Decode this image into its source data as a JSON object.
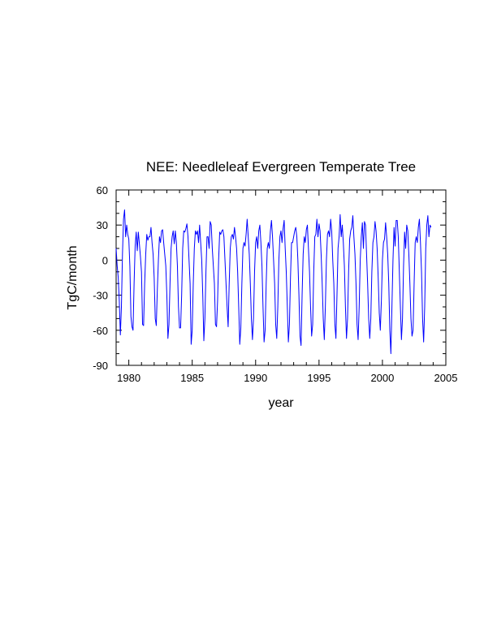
{
  "chart_data": {
    "type": "line",
    "title": "NEE: Needleleaf Evergreen Temperate Tree",
    "xlabel": "year",
    "ylabel": "TgC/month",
    "xlim": [
      1979,
      2005
    ],
    "ylim": [
      -90,
      60
    ],
    "x_ticks": [
      1980,
      1985,
      1990,
      1995,
      2000,
      2005
    ],
    "y_ticks": [
      60,
      30,
      0,
      -30,
      -60,
      -90
    ],
    "grid": false,
    "series_color": "#0000ff",
    "x_start": 1979,
    "step": 0.08333,
    "series": [
      {
        "values": [
          10,
          -5,
          -15,
          -35,
          -64,
          -40,
          5,
          35,
          43,
          20,
          30,
          22,
          18,
          -5,
          -48,
          -57,
          -60,
          -20,
          12,
          24,
          8,
          24,
          14,
          3,
          -10,
          -55,
          -56,
          -20,
          5,
          22,
          17,
          20,
          20,
          28,
          15,
          5,
          -15,
          -50,
          -56,
          -25,
          0,
          20,
          15,
          25,
          26,
          15,
          5,
          -5,
          -30,
          -67,
          -55,
          -20,
          10,
          20,
          25,
          14,
          25,
          15,
          -5,
          -40,
          -58,
          -58,
          -30,
          10,
          25,
          24,
          27,
          31,
          20,
          0,
          -20,
          -72,
          -60,
          -20,
          10,
          25,
          22,
          25,
          15,
          30,
          15,
          0,
          -30,
          -69,
          -50,
          -10,
          20,
          20,
          10,
          33,
          30,
          10,
          -5,
          -20,
          -55,
          -57,
          -35,
          0,
          24,
          22,
          25,
          26,
          20,
          0,
          -20,
          -40,
          -57,
          -20,
          10,
          20,
          22,
          18,
          28,
          20,
          10,
          -10,
          -40,
          -72,
          -58,
          -20,
          10,
          15,
          12,
          22,
          35,
          20,
          5,
          -20,
          -50,
          -68,
          -50,
          -10,
          15,
          20,
          10,
          25,
          30,
          15,
          -5,
          -40,
          -70,
          -60,
          -20,
          10,
          15,
          10,
          25,
          34,
          20,
          0,
          -20,
          -55,
          -67,
          -40,
          0,
          20,
          25,
          15,
          27,
          34,
          10,
          -10,
          -40,
          -70,
          -55,
          -15,
          15,
          15,
          20,
          25,
          28,
          20,
          0,
          -30,
          -65,
          -73,
          -30,
          5,
          20,
          15,
          26,
          30,
          10,
          -10,
          -40,
          -65,
          -55,
          -10,
          20,
          22,
          35,
          20,
          31,
          25,
          5,
          -20,
          -50,
          -68,
          -40,
          0,
          22,
          25,
          20,
          35,
          25,
          0,
          -20,
          -55,
          -67,
          -30,
          10,
          20,
          39,
          20,
          30,
          15,
          -5,
          -40,
          -67,
          -50,
          -10,
          18,
          25,
          28,
          38,
          20,
          5,
          -20,
          -55,
          -68,
          -40,
          0,
          20,
          32,
          10,
          33,
          30,
          5,
          -20,
          -50,
          -67,
          -50,
          -10,
          15,
          20,
          33,
          25,
          10,
          -15,
          -45,
          -60,
          -35,
          0,
          15,
          18,
          32,
          20,
          5,
          -20,
          -60,
          -80,
          -40,
          0,
          28,
          12,
          34,
          34,
          20,
          -10,
          -40,
          -68,
          -50,
          -5,
          24,
          10,
          30,
          25,
          5,
          -20,
          -50,
          -65,
          -60,
          -20,
          15,
          20,
          15,
          28,
          35,
          15,
          -10,
          -50,
          -70,
          -40,
          10,
          30,
          38,
          20,
          30,
          28
        ]
      }
    ]
  }
}
